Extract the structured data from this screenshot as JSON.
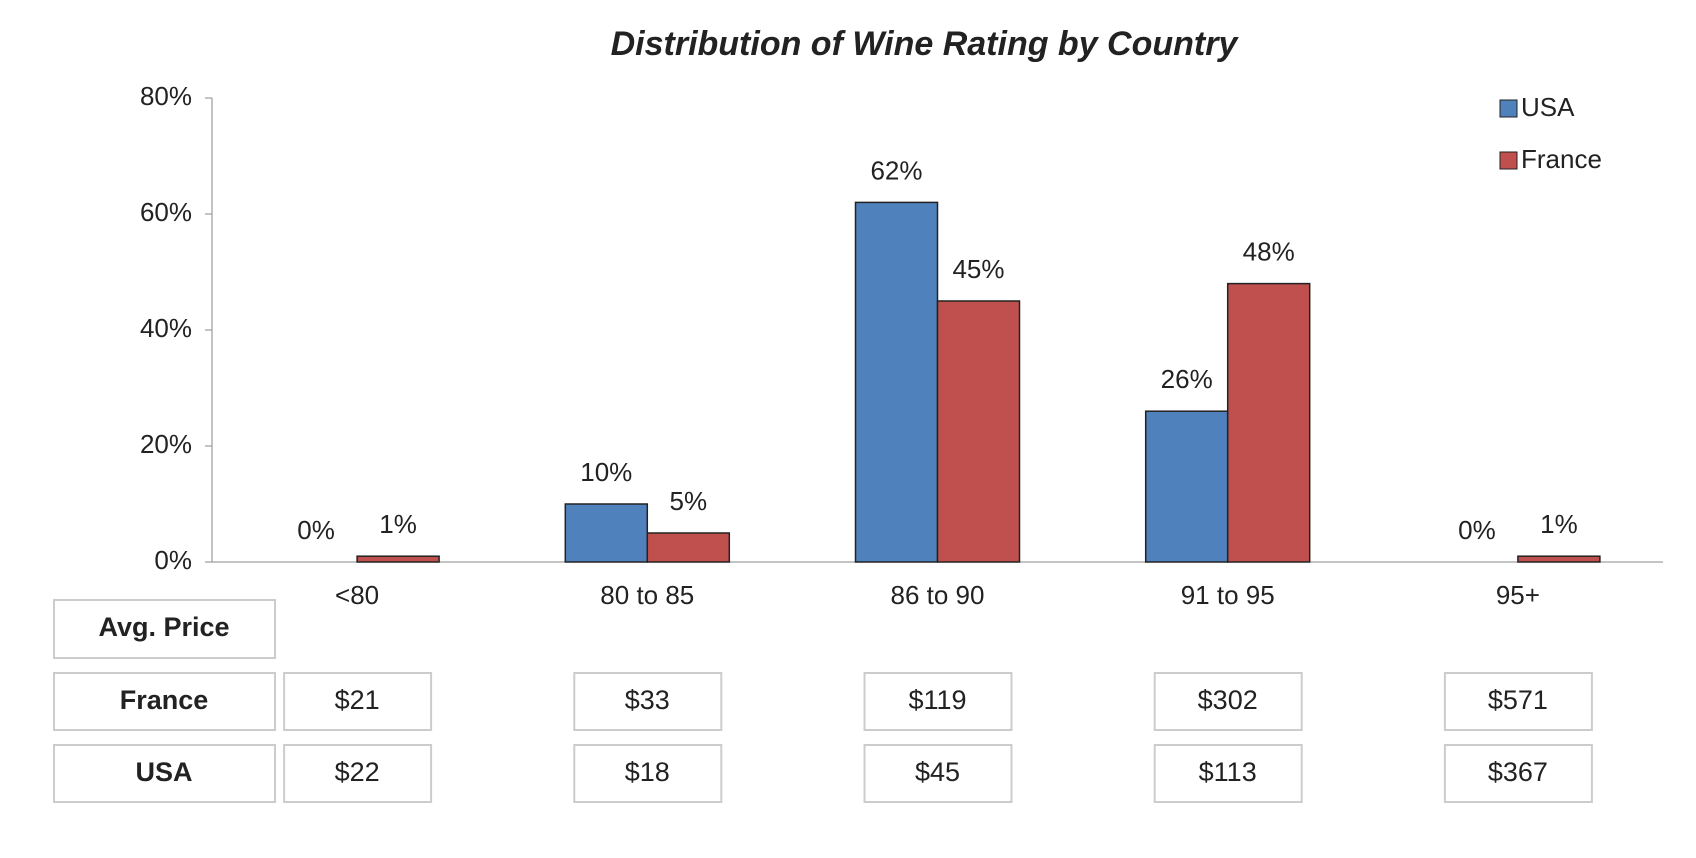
{
  "chart_data": {
    "type": "bar",
    "title": "Distribution of Wine Rating by Country",
    "categories": [
      "<80",
      "80 to 85",
      "86 to 90",
      "91 to 95",
      "95+"
    ],
    "series": [
      {
        "name": "USA",
        "color": "#4f81bd",
        "values": [
          0,
          10,
          62,
          26,
          0
        ],
        "value_labels": [
          "0%",
          "10%",
          "62%",
          "26%",
          "0%"
        ]
      },
      {
        "name": "France",
        "color": "#c0504d",
        "values": [
          1,
          5,
          45,
          48,
          1
        ],
        "value_labels": [
          "1%",
          "5%",
          "45%",
          "48%",
          "1%"
        ]
      }
    ],
    "ylim": [
      0,
      80
    ],
    "yticks": [
      {
        "value": 0,
        "label": "0%"
      },
      {
        "value": 20,
        "label": "20%"
      },
      {
        "value": 40,
        "label": "40%"
      },
      {
        "value": 60,
        "label": "60%"
      },
      {
        "value": 80,
        "label": "80%"
      }
    ],
    "grid": false,
    "legend": "top-right"
  },
  "table": {
    "header": "Avg. Price",
    "rows": [
      [
        "France",
        "$21",
        "$33",
        "$119",
        "$302",
        "$571"
      ],
      [
        "USA",
        "$22",
        "$18",
        "$45",
        "$113",
        "$367"
      ]
    ]
  }
}
